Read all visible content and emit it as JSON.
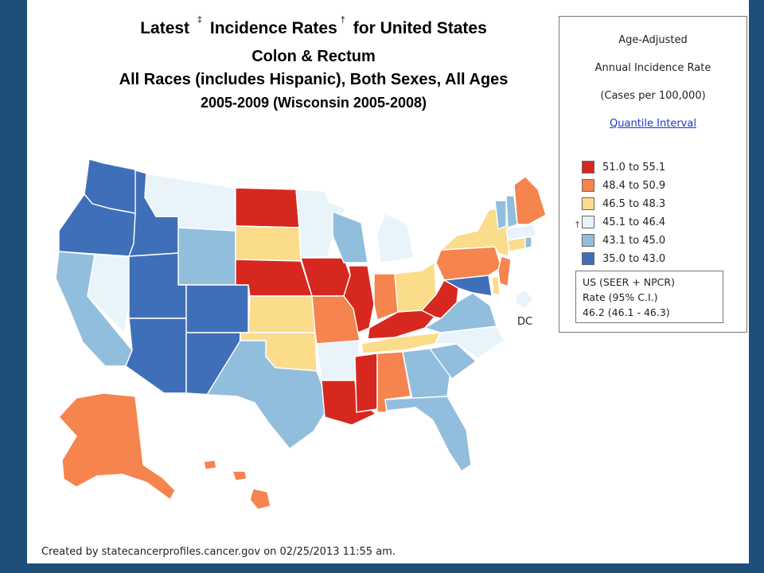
{
  "title": {
    "line1_a": "Latest",
    "line1_sup1": "‡",
    "line1_b": "Incidence Rates",
    "line1_sup2": "†",
    "line1_c": "for United States",
    "line2": "Colon & Rectum",
    "line3": "All Races (includes Hispanic), Both Sexes, All Ages",
    "line4": "2005-2009 (Wisconsin 2005-2008)"
  },
  "legend": {
    "heading1": "Age-Adjusted",
    "heading2": "Annual Incidence Rate",
    "heading3": "(Cases per 100,000)",
    "link": "Quantile Interval",
    "arrow": "↑",
    "classes": [
      {
        "label": "51.0  to  55.1",
        "color": "#d7281f"
      },
      {
        "label": "48.4  to  50.9",
        "color": "#f5844f"
      },
      {
        "label": "46.5  to  48.3",
        "color": "#fbdc8b"
      },
      {
        "label": "45.1  to  46.4",
        "color": "#e8f4fa"
      },
      {
        "label": "43.1  to  45.0",
        "color": "#92bede"
      },
      {
        "label": "35.0  to  43.0",
        "color": "#3f6fb8"
      }
    ],
    "us_line1": "US (SEER + NPCR)",
    "us_line2": "Rate (95% C.I.)",
    "us_line3": "46.2  (46.1 - 46.3)"
  },
  "map_data": {
    "type": "choropleth",
    "region": "United States",
    "states": [
      {
        "name": "Washington",
        "class": 5
      },
      {
        "name": "Oregon",
        "class": 5
      },
      {
        "name": "California",
        "class": 4
      },
      {
        "name": "Nevada",
        "class": 3
      },
      {
        "name": "Idaho",
        "class": 5
      },
      {
        "name": "Montana",
        "class": 3
      },
      {
        "name": "Wyoming",
        "class": 4
      },
      {
        "name": "Utah",
        "class": 5
      },
      {
        "name": "Colorado",
        "class": 5
      },
      {
        "name": "Arizona",
        "class": 5
      },
      {
        "name": "New Mexico",
        "class": 5
      },
      {
        "name": "North Dakota",
        "class": 0
      },
      {
        "name": "South Dakota",
        "class": 2
      },
      {
        "name": "Nebraska",
        "class": 0
      },
      {
        "name": "Kansas",
        "class": 2
      },
      {
        "name": "Oklahoma",
        "class": 2
      },
      {
        "name": "Texas",
        "class": 4
      },
      {
        "name": "Minnesota",
        "class": 3
      },
      {
        "name": "Iowa",
        "class": 0
      },
      {
        "name": "Missouri",
        "class": 1
      },
      {
        "name": "Arkansas",
        "class": 3
      },
      {
        "name": "Louisiana",
        "class": 0
      },
      {
        "name": "Wisconsin",
        "class": 4
      },
      {
        "name": "Illinois",
        "class": 0
      },
      {
        "name": "Michigan",
        "class": 3
      },
      {
        "name": "Indiana",
        "class": 1
      },
      {
        "name": "Ohio",
        "class": 2
      },
      {
        "name": "Kentucky",
        "class": 0
      },
      {
        "name": "Tennessee",
        "class": 2
      },
      {
        "name": "Mississippi",
        "class": 0
      },
      {
        "name": "Alabama",
        "class": 1
      },
      {
        "name": "Georgia",
        "class": 4
      },
      {
        "name": "Florida",
        "class": 4
      },
      {
        "name": "South Carolina",
        "class": 4
      },
      {
        "name": "North Carolina",
        "class": 3
      },
      {
        "name": "Virginia",
        "class": 4
      },
      {
        "name": "West Virginia",
        "class": 0
      },
      {
        "name": "Pennsylvania",
        "class": 1
      },
      {
        "name": "New York",
        "class": 2
      },
      {
        "name": "Maryland",
        "class": 5
      },
      {
        "name": "Delaware",
        "class": 2
      },
      {
        "name": "New Jersey",
        "class": 1
      },
      {
        "name": "Connecticut",
        "class": 2
      },
      {
        "name": "Rhode Island",
        "class": 4
      },
      {
        "name": "Massachusetts",
        "class": 3
      },
      {
        "name": "Vermont",
        "class": 4
      },
      {
        "name": "New Hampshire",
        "class": 4
      },
      {
        "name": "Maine",
        "class": 1
      },
      {
        "name": "District of Columbia",
        "class": 3
      },
      {
        "name": "Alaska",
        "class": 1
      },
      {
        "name": "Hawaii",
        "class": 1
      }
    ],
    "dc_label": "DC"
  },
  "footer": "Created by statecancerprofiles.cancer.gov on 02/25/2013 11:55 am."
}
